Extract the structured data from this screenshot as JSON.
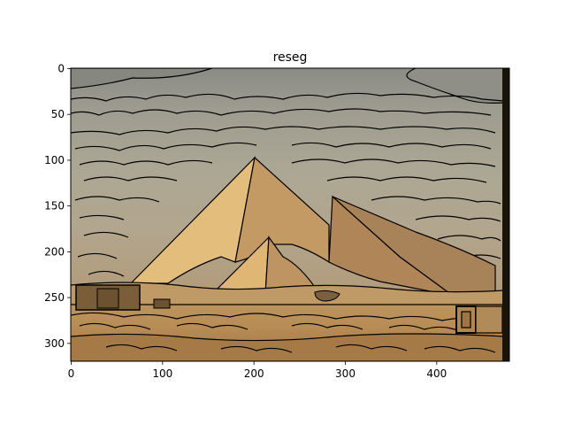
{
  "figure": {
    "title": "reseg"
  },
  "axes": {
    "x_ticks": [
      0,
      100,
      200,
      300,
      400
    ],
    "y_ticks": [
      0,
      50,
      100,
      150,
      200,
      250,
      300
    ],
    "x_range": [
      0,
      480
    ],
    "y_range": [
      0,
      320
    ],
    "y_inverted": true
  },
  "image": {
    "subject": "segmented pyramids landscape",
    "colors": {
      "sky_dark": "#8a8a84",
      "sky_mid": "#a3a092",
      "sky_light": "#b5ad96",
      "pyramid_light": "#e3bd7c",
      "pyramid_mid": "#c49a64",
      "pyramid_dark": "#ae8559",
      "ground": "#b88c55",
      "ground_dark": "#8e6a3d",
      "boundary": "#000000",
      "edge_strip": "#1a1408"
    }
  }
}
